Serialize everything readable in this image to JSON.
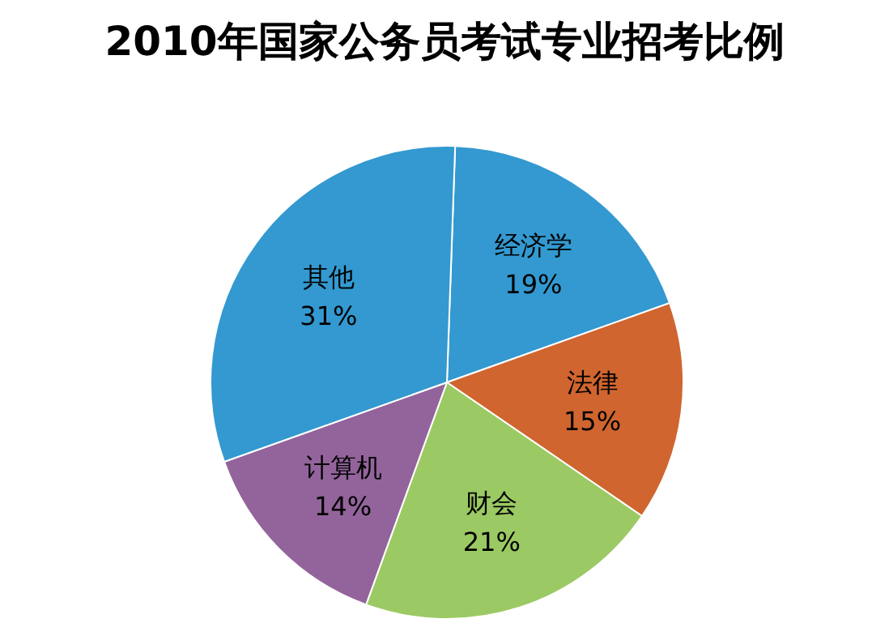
{
  "chart_data": {
    "type": "pie",
    "title": "2010年国家公务员考试专业招考比例",
    "categories": [
      "经济学",
      "法律",
      "财会",
      "计算机",
      "其他"
    ],
    "values": [
      19,
      15,
      21,
      14,
      31
    ],
    "value_labels": [
      "19%",
      "15%",
      "21%",
      "14%",
      "31%"
    ],
    "colors": [
      "#3399d0",
      "#d0652f",
      "#9bc963",
      "#93649b",
      "#3399d0"
    ]
  }
}
